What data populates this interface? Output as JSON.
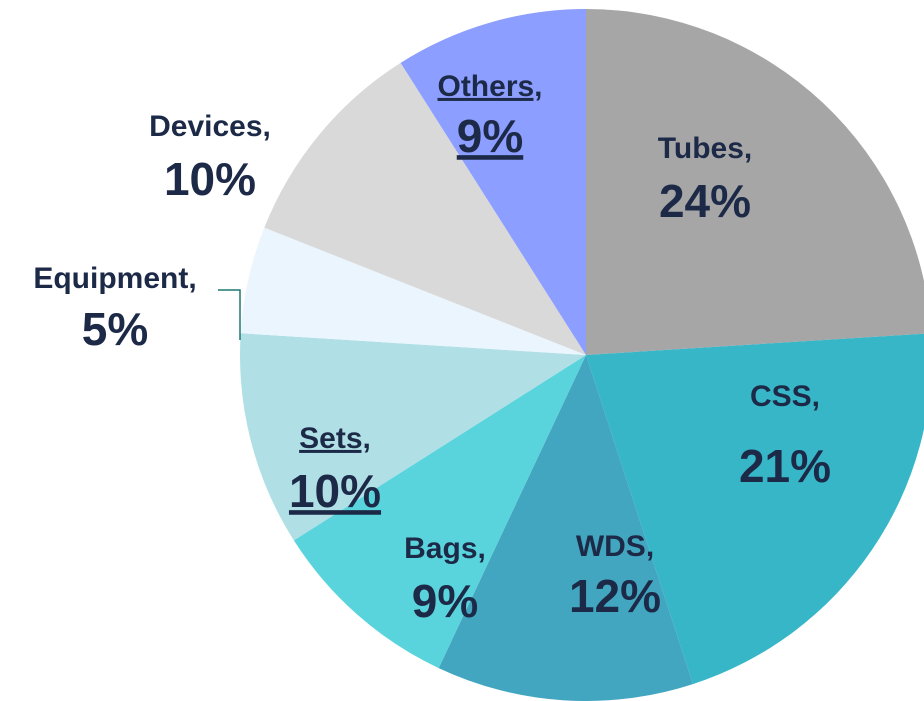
{
  "chart_data": {
    "type": "pie",
    "categories": [
      "Tubes,",
      "CSS,",
      "WDS,",
      "Bags,",
      "Sets,",
      "Equipment,",
      "Devices,",
      "Others,"
    ],
    "values": [
      24,
      21,
      12,
      9,
      10,
      5,
      10,
      9
    ],
    "value_labels": [
      "24%",
      "21%",
      "12%",
      "9%",
      "10%",
      "5%",
      "10%",
      "9%"
    ],
    "colors": [
      "#a6a6a6",
      "#37b6c8",
      "#42a6c0",
      "#5ad4dc",
      "#b0dfe6",
      "#eaf5fd",
      "#d9d9d9",
      "#8c9eff"
    ]
  }
}
